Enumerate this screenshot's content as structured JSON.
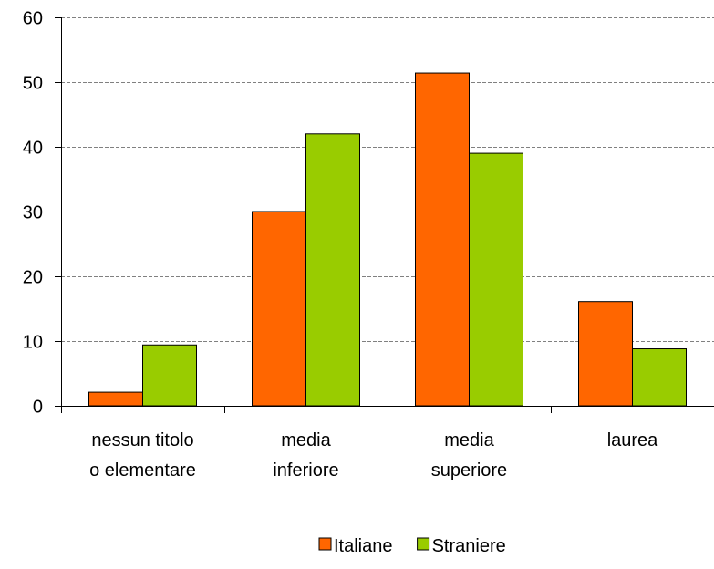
{
  "chart_data": {
    "type": "bar",
    "title": "",
    "xlabel": "",
    "ylabel": "",
    "categories": [
      [
        "nessun titolo",
        "o elementare"
      ],
      [
        "media",
        "inferiore"
      ],
      [
        "media",
        "superiore"
      ],
      [
        "laurea"
      ]
    ],
    "series": [
      {
        "name": "Italiane",
        "color": "#FF6600",
        "values": [
          2.1,
          30.0,
          51.4,
          16.1
        ]
      },
      {
        "name": "Straniere",
        "color": "#99CC00",
        "values": [
          9.4,
          42.0,
          39.0,
          8.8
        ]
      }
    ],
    "ylim": [
      0,
      60
    ],
    "yticks": [
      0,
      10,
      20,
      30,
      40,
      50,
      60
    ],
    "grid": true,
    "legend_position": "bottom"
  }
}
